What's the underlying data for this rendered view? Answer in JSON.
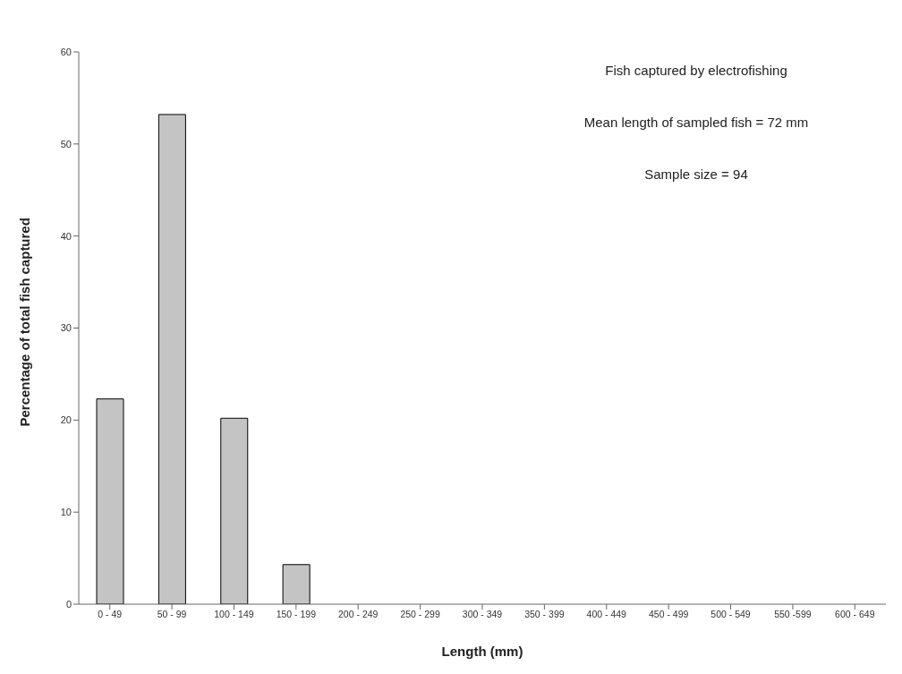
{
  "chart_data": {
    "type": "bar",
    "xlabel": "Length (mm)",
    "ylabel": "Percentage of total fish captured",
    "categories": [
      "0 - 49",
      "50 - 99",
      "100 - 149",
      "150 - 199",
      "200 - 249",
      "250 - 299",
      "300 - 349",
      "350 - 399",
      "400 - 449",
      "450 - 499",
      "500 - 549",
      "550 -599",
      "600 - 649"
    ],
    "values": [
      22.3,
      53.2,
      20.2,
      4.3,
      0,
      0,
      0,
      0,
      0,
      0,
      0,
      0,
      0
    ],
    "color": "#c4c4c4",
    "ylim": [
      0,
      60
    ],
    "yticks": [
      0,
      10,
      20,
      30,
      40,
      50,
      60
    ],
    "grid": false,
    "annotations": [
      "Fish captured by electrofishing",
      "Mean length of sampled fish = 72 mm",
      "Sample size  = 94"
    ]
  }
}
